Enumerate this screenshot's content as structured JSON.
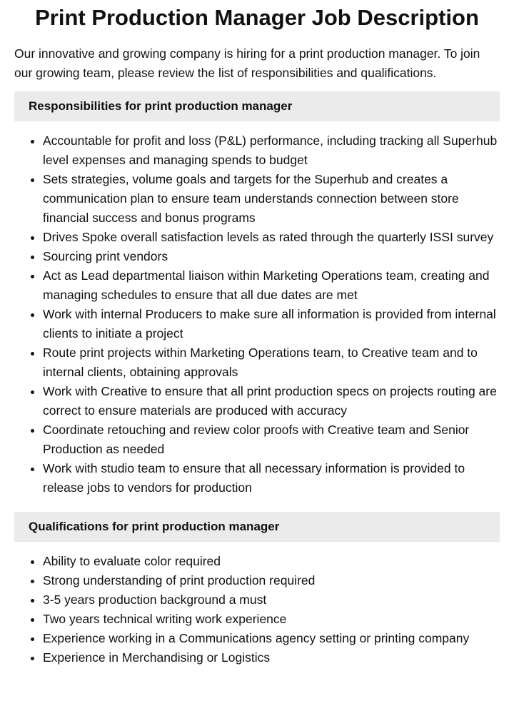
{
  "title": "Print Production Manager Job Description",
  "intro": "Our innovative and growing company is hiring for a print production manager. To join our growing team, please review the list of responsibilities and qualifications.",
  "responsibilities": {
    "heading": "Responsibilities for print production manager",
    "items": [
      "Accountable for profit and loss (P&L) performance, including tracking all Superhub level expenses and managing spends to budget",
      "Sets strategies, volume goals and targets for the Superhub and creates a communication plan to ensure team understands connection between store financial success and bonus programs",
      "Drives Spoke overall satisfaction levels as rated through the quarterly ISSI survey",
      "Sourcing print vendors",
      "Act as Lead departmental liaison within Marketing Operations team, creating and managing schedules to ensure that all due dates are met",
      "Work with internal Producers to make sure all information is provided from internal clients to initiate a project",
      "Route print projects within Marketing Operations team, to Creative team and to internal clients, obtaining approvals",
      "Work with Creative to ensure that all print production specs on projects routing are correct to ensure materials are produced with accuracy",
      "Coordinate retouching and review color proofs with Creative team and Senior Production as needed",
      "Work with studio team to ensure that all necessary information is provided to release jobs to vendors for production"
    ]
  },
  "qualifications": {
    "heading": "Qualifications for print production manager",
    "items": [
      "Ability to evaluate color required",
      "Strong understanding of print production required",
      "3-5 years production background a must",
      "Two years technical writing work experience",
      "Experience working in a Communications agency setting or printing company",
      "Experience in Merchandising or Logistics"
    ]
  }
}
